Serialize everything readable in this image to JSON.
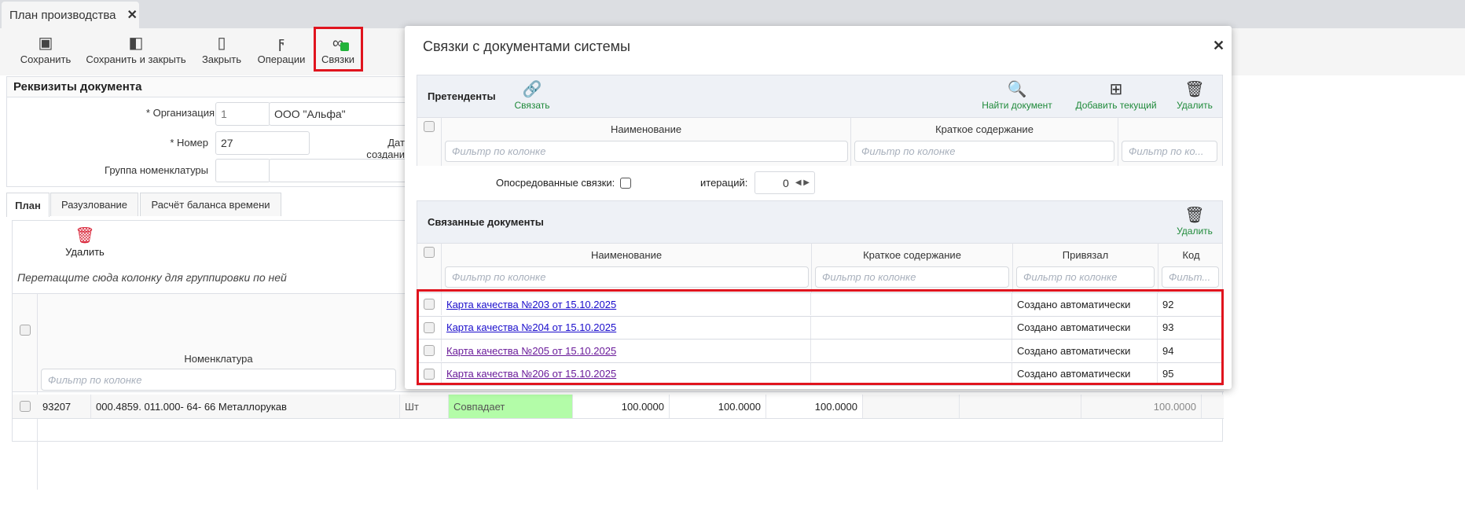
{
  "tab": {
    "title": "План производства",
    "close": "✕"
  },
  "toolbar": [
    {
      "label": "Сохранить",
      "icon": "save-icon",
      "glyph": "🖫"
    },
    {
      "label": "Сохранить и закрыть",
      "icon": "save-close-icon",
      "glyph": "◧"
    },
    {
      "label": "Закрыть",
      "icon": "close-door-icon",
      "glyph": "▯"
    },
    {
      "label": "Операции",
      "icon": "lightning-icon",
      "glyph": "ϟ"
    },
    {
      "label": "Связки",
      "icon": "link-check-icon",
      "glyph": "🔗"
    }
  ],
  "doc": {
    "title": "Реквизиты документа",
    "org_label": "* Организация",
    "org_code": "1",
    "org_name": "ООО \"Альфа\"",
    "num_label": "* Номер",
    "num_value": "27",
    "date_label": "Дата создания",
    "group_label": "Группа номенклатуры"
  },
  "tabs": [
    "План",
    "Разузлование",
    "Расчёт баланса времени"
  ],
  "grid": {
    "delete": "Удалить",
    "group_hint": "Перетащите сюда колонку для группировки по ней",
    "col_name": "Номенклатура",
    "filter": "Фильтр по колонке",
    "row": [
      "93207",
      "000.4859. 011.000- 64- 66 Металлорукав",
      "Шт",
      "Совпадает",
      "100.0000",
      "100.0000",
      "100.0000",
      "",
      "",
      "100.0000"
    ]
  },
  "dialog": {
    "title": "Связки с документами системы",
    "close": "✕",
    "candidates": {
      "title": "Претенденты",
      "link": "Связать",
      "find": "Найти документ",
      "add": "Добавить текущий",
      "delete": "Удалить",
      "cols": [
        "Наименование",
        "Краткое содержание"
      ],
      "filter": "Фильтр по колонке",
      "filter_short": "Фильтр по ко..."
    },
    "indirect_label": "Опосредованные связки:",
    "iter_label": "итераций:",
    "iter_value": "0",
    "linked": {
      "title": "Связанные документы",
      "delete": "Удалить",
      "cols": [
        "Наименование",
        "Краткое содержание",
        "Привязал",
        "Код"
      ],
      "filter": "Фильтр по колонке",
      "filter_short": "Фильт...",
      "rows": [
        {
          "name": "Карта качества №203 от 15.10.2025",
          "summary": "",
          "by": "Создано автоматически",
          "code": "92",
          "visited": false
        },
        {
          "name": "Карта качества №204 от 15.10.2025",
          "summary": "",
          "by": "Создано автоматически",
          "code": "93",
          "visited": false
        },
        {
          "name": "Карта качества №205 от 15.10.2025",
          "summary": "",
          "by": "Создано автоматически",
          "code": "94",
          "visited": true
        },
        {
          "name": "Карта качества №206 от 15.10.2025",
          "summary": "",
          "by": "Создано автоматически",
          "code": "95",
          "visited": true
        }
      ]
    }
  },
  "colors": {
    "highlight": "#e0141e",
    "match": "#b3fca8",
    "action": "#1f8a3a",
    "delete_red": "#d9263a"
  }
}
